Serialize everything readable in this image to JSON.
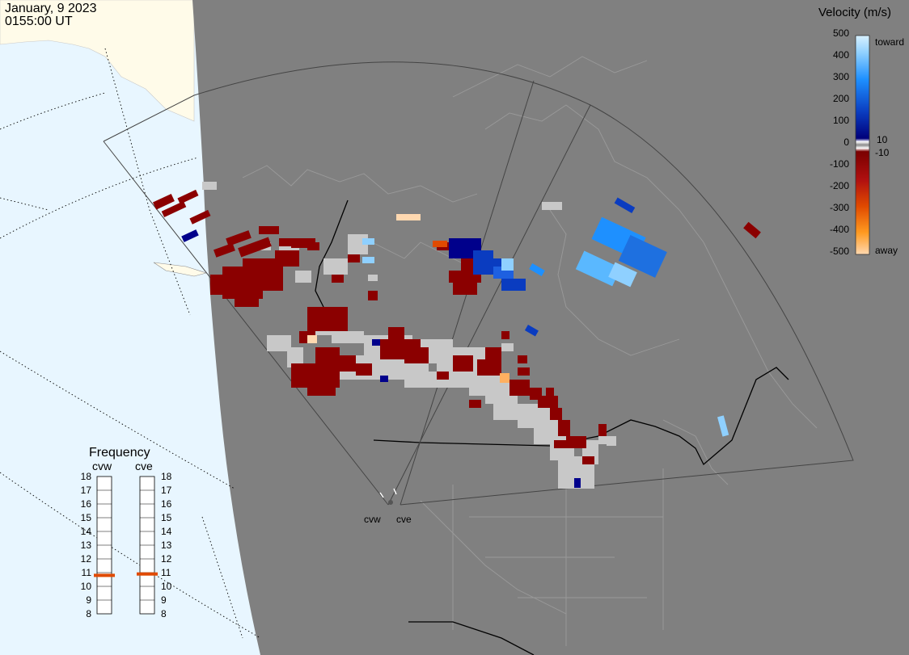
{
  "header": {
    "date": "January, 9 2023",
    "time": "0155:00 UT"
  },
  "velocity_scale": {
    "title": "Velocity (m/s)",
    "ticks_left": [
      "500",
      "400",
      "300",
      "200",
      "100",
      "0",
      "-100",
      "-200",
      "-300",
      "-400",
      "-500"
    ],
    "label_toward": "toward",
    "label_away": "away",
    "label_pos10": "10",
    "label_neg10": "-10"
  },
  "frequency": {
    "title": "Frequency",
    "radar1": "cvw",
    "radar2": "cve",
    "ticks": [
      "18",
      "17",
      "16",
      "15",
      "14",
      "13",
      "12",
      "11",
      "10",
      "9",
      "8"
    ],
    "cvw_mhz": 10.8,
    "cve_mhz": 10.9
  },
  "radars": {
    "site1": "cvw",
    "site2": "cve"
  },
  "colors": {
    "ocean": "#e8f6ff",
    "land_ice": "#fffbe9",
    "night": "#808080",
    "ground_scatter": "#c8c8c8",
    "away_dark": "#8b0000",
    "toward_dark": "#00008b"
  }
}
